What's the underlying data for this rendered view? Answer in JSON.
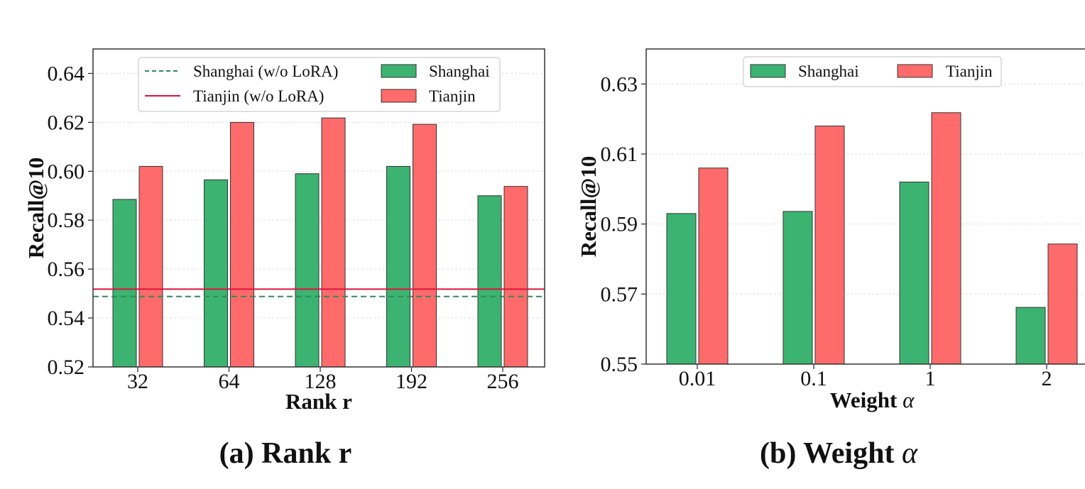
{
  "colors": {
    "shanghai": "#3cb371",
    "tianjin": "#ff6b6b",
    "shanghai_line": "#2e8b57",
    "tianjin_line": "#dc143c",
    "bar_edge": "#333333",
    "frame": "#333333",
    "grid": "#dddddd"
  },
  "captions": {
    "a": "(a) Rank r",
    "b_prefix": "(b) Weight ",
    "b_symbol": "α"
  },
  "chart_data": [
    {
      "type": "bar",
      "xlabel": "Rank r",
      "ylabel": "Recall@10",
      "categories": [
        "32",
        "64",
        "128",
        "192",
        "256"
      ],
      "ylim": [
        0.52,
        0.65
      ],
      "yticks": [
        "0.52",
        "0.54",
        "0.56",
        "0.58",
        "0.60",
        "0.62",
        "0.64"
      ],
      "series": [
        {
          "name": "Shanghai",
          "values": [
            0.5885,
            0.5965,
            0.599,
            0.602,
            0.59
          ]
        },
        {
          "name": "Tianjin",
          "values": [
            0.602,
            0.62,
            0.6218,
            0.6192,
            0.5938
          ]
        }
      ],
      "reference_lines": [
        {
          "name": "Shanghai (w/o LoRA)",
          "value": 0.5488,
          "style": "dashed"
        },
        {
          "name": "Tianjin (w/o LoRA)",
          "value": 0.5518,
          "style": "solid"
        }
      ],
      "grid": true,
      "legend": "top-center"
    },
    {
      "type": "bar",
      "xlabel_prefix": "Weight ",
      "xlabel_symbol": "α",
      "ylabel": "Recall@10",
      "categories": [
        "0.01",
        "0.1",
        "1",
        "2"
      ],
      "ylim": [
        0.55,
        0.64
      ],
      "yticks": [
        "0.55",
        "0.57",
        "0.59",
        "0.61",
        "0.63"
      ],
      "series": [
        {
          "name": "Shanghai",
          "values": [
            0.593,
            0.5936,
            0.602,
            0.5662
          ]
        },
        {
          "name": "Tianjin",
          "values": [
            0.606,
            0.618,
            0.6218,
            0.5843
          ]
        }
      ],
      "grid": true,
      "legend": "top-center"
    }
  ]
}
